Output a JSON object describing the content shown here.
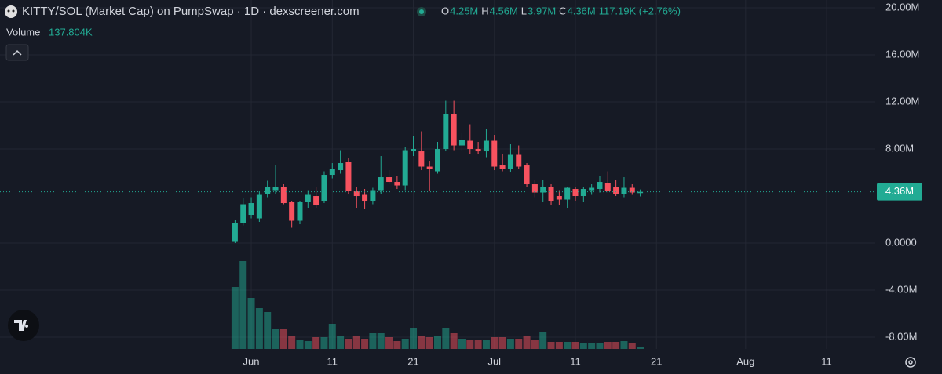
{
  "chart_data": {
    "type": "candlestick",
    "title": "KITTY/SOL (Market Cap) on PumpSwap · 1D · dexscreener.com",
    "legend_values": [
      {
        "key": "O",
        "value": 4.25,
        "label": "4.25M"
      },
      {
        "key": "H",
        "value": 4.56,
        "label": "4.56M"
      },
      {
        "key": "L",
        "value": 3.97,
        "label": "3.97M"
      },
      {
        "key": "C",
        "value": 4.36,
        "label": "4.36M"
      }
    ],
    "change_text": "117.19K (+2.76%)",
    "up_color": "#22ab94",
    "down_color": "#f7525f",
    "x": [
      "05-30",
      "05-31",
      "06-01",
      "06-02",
      "06-03",
      "06-04",
      "06-05",
      "06-06",
      "06-07",
      "06-08",
      "06-09",
      "06-10",
      "06-11",
      "06-12",
      "06-13",
      "06-14",
      "06-15",
      "06-16",
      "06-17",
      "06-18",
      "06-19",
      "06-20",
      "06-21",
      "06-22",
      "06-23",
      "06-24",
      "06-25",
      "06-26",
      "06-27",
      "06-28",
      "06-29",
      "06-30",
      "07-01",
      "07-02",
      "07-03",
      "07-04",
      "07-05",
      "07-06",
      "07-07",
      "07-08",
      "07-09",
      "07-10",
      "07-11",
      "07-12",
      "07-13",
      "07-14",
      "07-15",
      "07-16",
      "07-17",
      "07-18",
      "07-19"
    ],
    "ohlc": [
      [
        0.1,
        2.0,
        0.0,
        1.7
      ],
      [
        1.7,
        3.8,
        1.5,
        3.3
      ],
      [
        2.4,
        3.9,
        2.1,
        3.4
      ],
      [
        2.1,
        4.4,
        1.8,
        4.1
      ],
      [
        4.2,
        5.3,
        3.9,
        4.8
      ],
      [
        4.5,
        6.6,
        4.2,
        4.8
      ],
      [
        4.8,
        5.0,
        3.3,
        3.4
      ],
      [
        3.5,
        3.6,
        1.3,
        1.9
      ],
      [
        1.9,
        3.6,
        1.6,
        3.5
      ],
      [
        3.5,
        4.5,
        3.0,
        4.1
      ],
      [
        4.0,
        4.8,
        3.0,
        3.2
      ],
      [
        3.6,
        6.1,
        3.4,
        5.8
      ],
      [
        5.8,
        6.8,
        5.5,
        6.3
      ],
      [
        6.2,
        7.9,
        5.9,
        6.8
      ],
      [
        6.9,
        7.2,
        4.2,
        4.4
      ],
      [
        4.4,
        4.8,
        3.0,
        4.0
      ],
      [
        4.1,
        4.6,
        2.9,
        3.6
      ],
      [
        3.6,
        4.7,
        3.3,
        4.5
      ],
      [
        4.5,
        7.4,
        4.2,
        5.6
      ],
      [
        5.6,
        6.2,
        5.0,
        5.2
      ],
      [
        5.2,
        5.7,
        4.6,
        4.9
      ],
      [
        4.9,
        8.2,
        4.5,
        7.9
      ],
      [
        7.8,
        9.1,
        7.4,
        8.0
      ],
      [
        7.8,
        9.5,
        6.2,
        6.5
      ],
      [
        6.5,
        7.0,
        4.4,
        6.3
      ],
      [
        6.1,
        8.6,
        5.9,
        8.0
      ],
      [
        8.0,
        12.1,
        7.8,
        11.0
      ],
      [
        11.0,
        12.1,
        7.9,
        8.3
      ],
      [
        8.3,
        9.4,
        7.8,
        8.8
      ],
      [
        8.7,
        10.1,
        7.6,
        8.0
      ],
      [
        8.0,
        8.6,
        7.6,
        7.8
      ],
      [
        7.8,
        9.7,
        7.3,
        8.7
      ],
      [
        8.7,
        9.2,
        6.2,
        6.5
      ],
      [
        6.6,
        7.6,
        6.1,
        6.3
      ],
      [
        6.3,
        8.4,
        6.0,
        7.5
      ],
      [
        7.5,
        8.3,
        6.3,
        6.5
      ],
      [
        6.6,
        6.8,
        4.8,
        5.0
      ],
      [
        5.0,
        5.4,
        3.9,
        4.3
      ],
      [
        4.3,
        5.4,
        3.5,
        4.8
      ],
      [
        4.8,
        5.0,
        3.2,
        3.6
      ],
      [
        4.0,
        4.5,
        3.2,
        3.7
      ],
      [
        3.7,
        4.8,
        3.0,
        4.7
      ],
      [
        4.6,
        4.8,
        3.6,
        4.0
      ],
      [
        4.0,
        4.8,
        3.5,
        4.6
      ],
      [
        4.5,
        5.0,
        4.1,
        4.7
      ],
      [
        4.6,
        5.7,
        4.3,
        5.2
      ],
      [
        5.1,
        6.1,
        4.3,
        4.4
      ],
      [
        4.8,
        5.4,
        4.0,
        4.2
      ],
      [
        4.2,
        5.6,
        3.9,
        4.7
      ],
      [
        4.7,
        5.0,
        4.1,
        4.3
      ],
      [
        4.25,
        4.56,
        3.97,
        4.36
      ]
    ],
    "volume": {
      "name": "Volume",
      "value_label": "137.804K",
      "values": [
        3634,
        5152,
        2990,
        2392,
        2162,
        1150,
        1150,
        782,
        552,
        460,
        690,
        690,
        1472,
        782,
        598,
        782,
        598,
        920,
        920,
        690,
        460,
        598,
        1242,
        782,
        690,
        782,
        1242,
        920,
        598,
        506,
        506,
        552,
        690,
        690,
        598,
        598,
        782,
        552,
        966,
        414,
        414,
        414,
        414,
        368,
        368,
        368,
        414,
        414,
        460,
        368,
        137.804
      ]
    },
    "last_price": {
      "value": 4.36,
      "label": "4.36M"
    },
    "xlim": [
      "05-01",
      "08-17"
    ],
    "xticks": [
      {
        "value": "06-01",
        "label": "Jun"
      },
      {
        "value": "06-11",
        "label": "11"
      },
      {
        "value": "06-21",
        "label": "21"
      },
      {
        "value": "07-01",
        "label": "Jul"
      },
      {
        "value": "07-11",
        "label": "11"
      },
      {
        "value": "07-21",
        "label": "21"
      },
      {
        "value": "08-01",
        "label": "Aug"
      },
      {
        "value": "08-11",
        "label": "11"
      }
    ],
    "ylim": [
      -9.0,
      20.67
    ],
    "yticks": [
      {
        "value": 20,
        "label": "20.00M"
      },
      {
        "value": 16,
        "label": "16.00M"
      },
      {
        "value": 12,
        "label": "12.00M"
      },
      {
        "value": 8,
        "label": "8.00M"
      },
      {
        "value": 0,
        "label": "0.0000"
      },
      {
        "value": -4,
        "label": "-4.00M"
      },
      {
        "value": -8,
        "label": "-8.00M"
      }
    ],
    "grid": true
  }
}
